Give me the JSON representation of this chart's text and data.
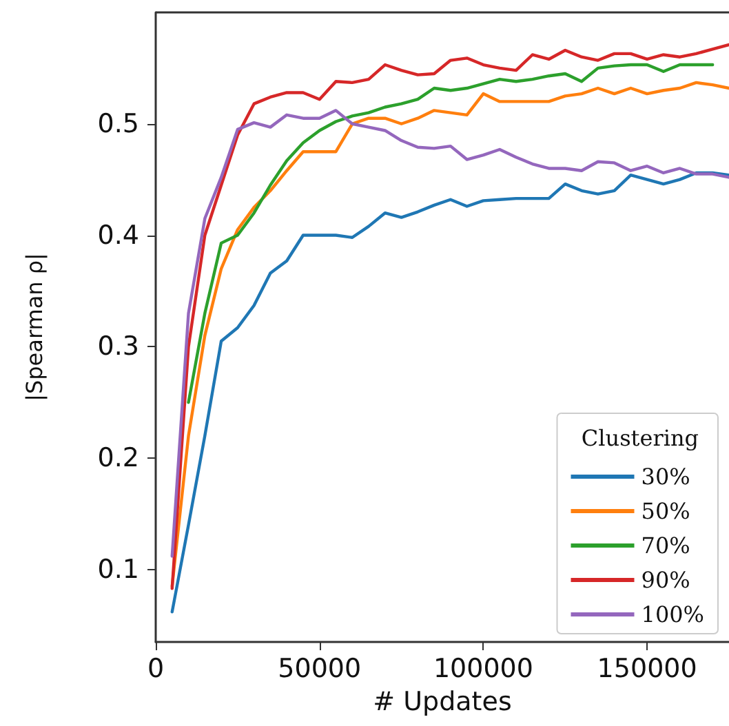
{
  "chart_data": {
    "type": "line",
    "xlabel": "# Updates",
    "ylabel": "|Spearman ρ|",
    "legend_title": "Clustering",
    "legend": "bottom right",
    "grid": false,
    "marker": "none",
    "line_style": "solid",
    "x": [
      5000,
      10000,
      15000,
      20000,
      25000,
      30000,
      35000,
      40000,
      45000,
      50000,
      55000,
      60000,
      65000,
      70000,
      75000,
      80000,
      85000,
      90000,
      95000,
      100000,
      105000,
      110000,
      115000,
      120000,
      125000,
      130000,
      135000,
      140000,
      145000,
      150000,
      155000,
      160000,
      165000,
      170000,
      175000
    ],
    "xlim": [
      0,
      175000
    ],
    "xticks": [
      0,
      50000,
      100000,
      150000
    ],
    "ylim": [
      0.035,
      0.6
    ],
    "yticks": [
      0.1,
      0.2,
      0.3,
      0.4,
      0.5
    ],
    "series": [
      {
        "name": "30%",
        "color": "#1f77b4",
        "values": [
          0.062,
          0.14,
          0.22,
          0.305,
          0.317,
          0.337,
          0.366,
          0.377,
          0.4,
          0.4,
          0.4,
          0.398,
          0.408,
          0.42,
          0.416,
          0.421,
          0.427,
          0.432,
          0.426,
          0.431,
          0.432,
          0.433,
          0.433,
          0.433,
          0.446,
          0.44,
          0.437,
          0.44,
          0.454,
          0.45,
          0.446,
          0.45,
          0.456,
          0.456,
          0.454
        ]
      },
      {
        "name": "50%",
        "color": "#ff7f0e",
        "values": [
          0.085,
          0.22,
          0.31,
          0.37,
          0.405,
          0.425,
          0.44,
          0.458,
          0.475,
          0.475,
          0.475,
          0.5,
          0.505,
          0.505,
          0.5,
          0.505,
          0.512,
          0.51,
          0.508,
          0.527,
          0.52,
          0.52,
          0.52,
          0.52,
          0.525,
          0.527,
          0.532,
          0.527,
          0.532,
          0.527,
          0.53,
          0.532,
          0.537,
          0.535,
          0.532
        ]
      },
      {
        "name": "70%",
        "color": "#2ca02c",
        "values": [
          null,
          0.25,
          0.33,
          0.393,
          0.4,
          0.42,
          0.445,
          0.467,
          0.483,
          0.494,
          0.502,
          0.507,
          0.51,
          0.515,
          0.518,
          0.522,
          0.532,
          0.53,
          0.532,
          0.536,
          0.54,
          0.538,
          0.54,
          0.543,
          0.545,
          0.538,
          0.55,
          0.552,
          0.553,
          0.553,
          0.547,
          0.553,
          0.553,
          0.553,
          null
        ]
      },
      {
        "name": "90%",
        "color": "#d62728",
        "values": [
          0.083,
          0.3,
          0.4,
          0.445,
          0.49,
          0.518,
          0.524,
          0.528,
          0.528,
          0.522,
          0.538,
          0.537,
          0.54,
          0.553,
          0.548,
          0.544,
          0.545,
          0.557,
          0.559,
          0.553,
          0.55,
          0.548,
          0.562,
          0.558,
          0.566,
          0.56,
          0.557,
          0.563,
          0.563,
          0.558,
          0.562,
          0.56,
          0.563,
          0.567,
          0.571
        ]
      },
      {
        "name": "100%",
        "color": "#9467bd",
        "values": [
          0.112,
          0.33,
          0.415,
          0.452,
          0.495,
          0.501,
          0.497,
          0.508,
          0.505,
          0.505,
          0.512,
          0.5,
          0.497,
          0.494,
          0.485,
          0.479,
          0.478,
          0.48,
          0.468,
          0.472,
          0.477,
          0.47,
          0.464,
          0.46,
          0.46,
          0.458,
          0.466,
          0.465,
          0.458,
          0.462,
          0.456,
          0.46,
          0.455,
          0.455,
          0.452
        ]
      }
    ]
  }
}
